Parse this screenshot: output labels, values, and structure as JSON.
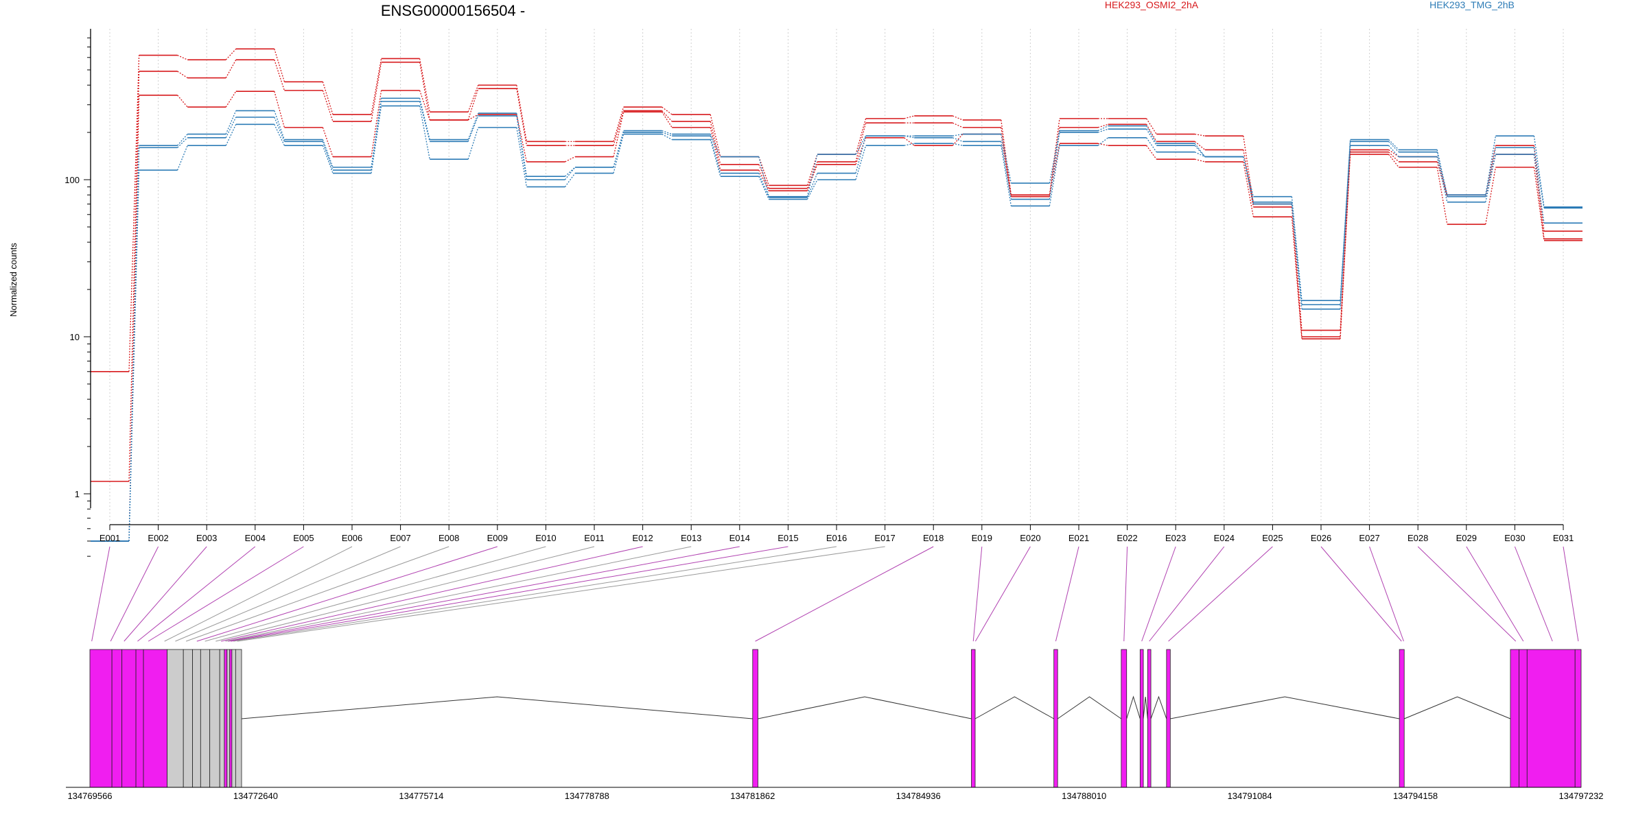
{
  "chart_data": {
    "type": "line",
    "title": "ENSG00000156504 -",
    "ylabel": "Normalized counts",
    "yscale": "log",
    "ylim": [
      0.4,
      850
    ],
    "yticks": [
      1,
      10,
      100
    ],
    "ytick_labels": [
      "1",
      "10",
      "100"
    ],
    "grid": "vertical dotted at each exon",
    "legend": [
      {
        "label": "HEK293_OSMI2_2hA",
        "color": "#d7191c"
      },
      {
        "label": "HEK293_TMG_2hB",
        "color": "#2c7bb6"
      }
    ],
    "exons": [
      "E001",
      "E002",
      "E003",
      "E004",
      "E005",
      "E006",
      "E007",
      "E008",
      "E009",
      "E010",
      "E011",
      "E012",
      "E013",
      "E014",
      "E015",
      "E016",
      "E017",
      "E018",
      "E019",
      "E020",
      "E021",
      "E022",
      "E023",
      "E024",
      "E025",
      "E026",
      "E027",
      "E028",
      "E029",
      "E030",
      "E031"
    ],
    "series": [
      {
        "group": "HEK293_OSMI2_2hA",
        "color": "#d7191c",
        "values": [
          6.0,
          620,
          580,
          680,
          420,
          260,
          590,
          270,
          400,
          175,
          175,
          290,
          260,
          140,
          92,
          145,
          245,
          255,
          240,
          80,
          245,
          245,
          195,
          190,
          70,
          11,
          155,
          140,
          80,
          165,
          47
        ]
      },
      {
        "group": "HEK293_OSMI2_2hA",
        "color": "#d7191c",
        "values": [
          1.2,
          490,
          445,
          580,
          370,
          235,
          560,
          240,
          380,
          165,
          165,
          275,
          235,
          125,
          88,
          130,
          230,
          230,
          215,
          78,
          215,
          225,
          175,
          155,
          67,
          10,
          150,
          130,
          78,
          145,
          42
        ]
      },
      {
        "group": "HEK293_OSMI2_2hA",
        "color": "#d7191c",
        "values": [
          0.5,
          345,
          290,
          365,
          215,
          140,
          370,
          240,
          260,
          130,
          140,
          270,
          215,
          115,
          85,
          125,
          185,
          165,
          195,
          78,
          170,
          165,
          135,
          130,
          58,
          9.7,
          145,
          120,
          52,
          120,
          41
        ]
      },
      {
        "group": "HEK293_TMG_2hB",
        "color": "#2c7bb6",
        "values": [
          0.5,
          165,
          195,
          275,
          180,
          120,
          330,
          180,
          265,
          105,
          120,
          205,
          195,
          140,
          78,
          145,
          190,
          190,
          195,
          95,
          205,
          220,
          170,
          140,
          78,
          17,
          180,
          155,
          80,
          190,
          67
        ]
      },
      {
        "group": "HEK293_TMG_2hB",
        "color": "#2c7bb6",
        "values": [
          0.5,
          160,
          185,
          250,
          175,
          115,
          315,
          175,
          255,
          100,
          120,
          200,
          190,
          110,
          77,
          110,
          190,
          185,
          175,
          75,
          200,
          210,
          165,
          140,
          72,
          16,
          175,
          150,
          78,
          160,
          66
        ]
      },
      {
        "group": "HEK293_TMG_2hB",
        "color": "#2c7bb6",
        "values": [
          0.5,
          115,
          165,
          225,
          165,
          110,
          295,
          135,
          215,
          90,
          110,
          195,
          180,
          105,
          75,
          100,
          165,
          170,
          165,
          68,
          165,
          185,
          150,
          140,
          70,
          15,
          165,
          140,
          72,
          145,
          53
        ]
      }
    ],
    "gene_model": {
      "genomic_ticks": [
        "134769566",
        "134772640",
        "134775714",
        "134778788",
        "134781862",
        "134784936",
        "134788010",
        "134791084",
        "134794158",
        "134797232"
      ],
      "exon_blocks": [
        {
          "start": 134769566,
          "end": 134769975,
          "color": "#f01ef0"
        },
        {
          "start": 134769975,
          "end": 134770160,
          "color": "#f01ef0"
        },
        {
          "start": 134770160,
          "end": 134770420,
          "color": "#f01ef0"
        },
        {
          "start": 134770420,
          "end": 134770560,
          "color": "#f01ef0"
        },
        {
          "start": 134770560,
          "end": 134771000,
          "color": "#f01ef0"
        },
        {
          "start": 134771000,
          "end": 134771300,
          "color": "#cccccc"
        },
        {
          "start": 134771300,
          "end": 134771470,
          "color": "#cccccc"
        },
        {
          "start": 134771470,
          "end": 134771620,
          "color": "#cccccc"
        },
        {
          "start": 134771620,
          "end": 134771790,
          "color": "#cccccc"
        },
        {
          "start": 134771790,
          "end": 134771975,
          "color": "#cccccc"
        },
        {
          "start": 134771975,
          "end": 134772060,
          "color": "#cccccc"
        },
        {
          "start": 134772060,
          "end": 134772110,
          "color": "#f01ef0"
        },
        {
          "start": 134772110,
          "end": 134772160,
          "color": "#cccccc"
        },
        {
          "start": 134772160,
          "end": 134772200,
          "color": "#f01ef0"
        },
        {
          "start": 134772200,
          "end": 134772270,
          "color": "#cccccc"
        },
        {
          "start": 134772270,
          "end": 134772380,
          "color": "#cccccc"
        },
        {
          "start": 134781862,
          "end": 134781960,
          "color": "#f01ef0"
        },
        {
          "start": 134785920,
          "end": 134785990,
          "color": "#f01ef0"
        },
        {
          "start": 134787450,
          "end": 134787520,
          "color": "#f01ef0"
        },
        {
          "start": 134788700,
          "end": 134788800,
          "color": "#f01ef0"
        },
        {
          "start": 134789050,
          "end": 134789110,
          "color": "#f01ef0"
        },
        {
          "start": 134789190,
          "end": 134789250,
          "color": "#f01ef0"
        },
        {
          "start": 134789540,
          "end": 134789610,
          "color": "#f01ef0"
        },
        {
          "start": 134793860,
          "end": 134793950,
          "color": "#f01ef0"
        },
        {
          "start": 134795920,
          "end": 134796080,
          "color": "#f01ef0"
        },
        {
          "start": 134796080,
          "end": 134796230,
          "color": "#f01ef0"
        },
        {
          "start": 134796230,
          "end": 134797120,
          "color": "#f01ef0"
        },
        {
          "start": 134797120,
          "end": 134797232,
          "color": "#f01ef0"
        }
      ],
      "exon_positions": [
        134769600,
        134769950,
        134770200,
        134770450,
        134770650,
        134770950,
        134771150,
        134771350,
        134771550,
        134771700,
        134771900,
        134772000,
        134772080,
        134772130,
        134772180,
        134772230,
        134772300,
        134781910,
        134785955,
        134785995,
        134787485,
        134788750,
        134789080,
        134789220,
        134789575,
        134793900,
        134793940,
        134796020,
        134796160,
        134796700,
        134797180
      ]
    }
  }
}
